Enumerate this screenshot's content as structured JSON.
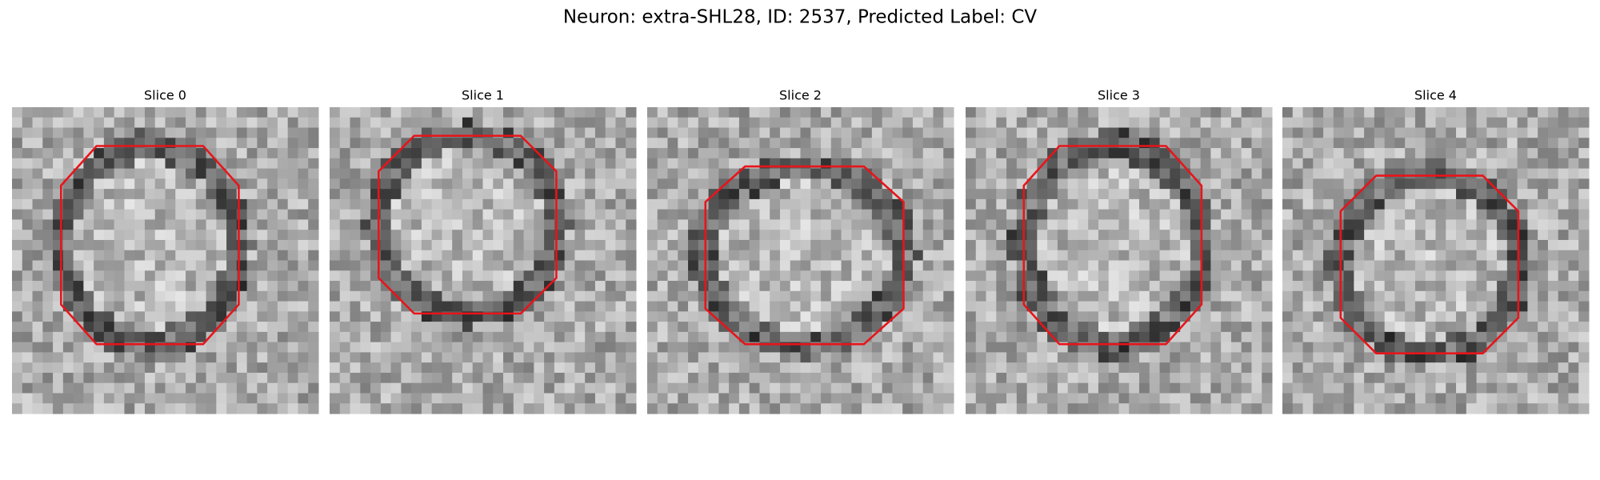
{
  "title": "Neuron: extra-SHL28, ID: 2537, Predicted Label: CV",
  "panels": [
    {
      "title": "Slice 0"
    },
    {
      "title": "Slice 1"
    },
    {
      "title": "Slice 2"
    },
    {
      "title": "Slice 3"
    },
    {
      "title": "Slice 4"
    }
  ]
}
